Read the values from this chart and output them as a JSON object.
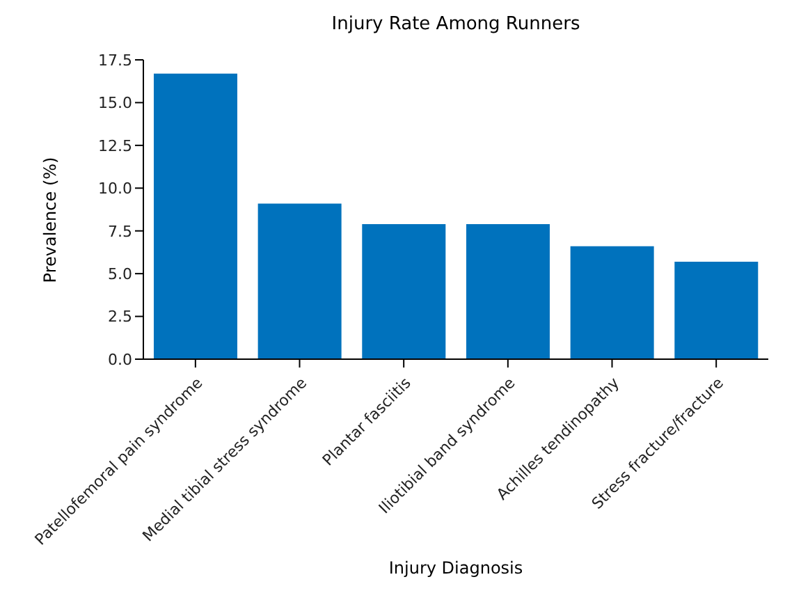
{
  "chart_data": {
    "type": "bar",
    "title": "Injury Rate Among Runners",
    "xlabel": "Injury Diagnosis",
    "ylabel": "Prevalence (%)",
    "categories": [
      "Patellofemoral pain syndrome",
      "Medial tibial stress syndrome",
      "Plantar fasciitis",
      "Iliotibial band syndrome",
      "Achilles tendinopathy",
      "Stress fracture/fracture"
    ],
    "values": [
      16.7,
      9.1,
      7.9,
      7.9,
      6.6,
      5.7
    ],
    "color": "#0072bd",
    "ylim": [
      0,
      17.5
    ],
    "yticks": [
      {
        "value": 0,
        "label": "0.0"
      },
      {
        "value": 2.5,
        "label": "2.5"
      },
      {
        "value": 5,
        "label": "5.0"
      },
      {
        "value": 7.5,
        "label": "7.5"
      },
      {
        "value": 10,
        "label": "10.0"
      },
      {
        "value": 12.5,
        "label": "12.5"
      },
      {
        "value": 15,
        "label": "15.0"
      },
      {
        "value": 17.5,
        "label": "17.5"
      }
    ],
    "grid": false
  }
}
